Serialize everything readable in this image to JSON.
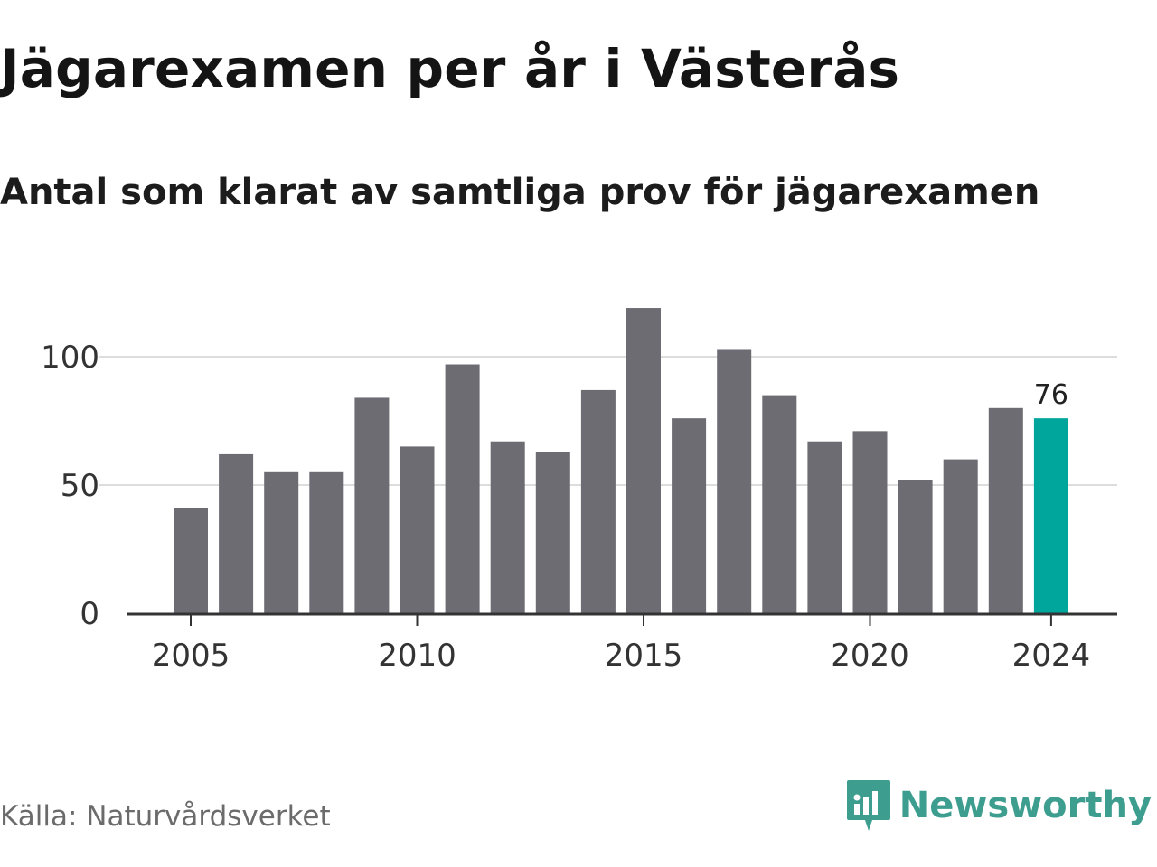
{
  "header": {
    "title": "Jägarexamen per år i Västerås",
    "subtitle": "Antal som klarat av samtliga prov för jägarexamen"
  },
  "footer": {
    "source": "Källa: Naturvårdsverket",
    "brand": "Newsworthy",
    "brand_icon": "newsworthy-logo-icon"
  },
  "colors": {
    "bar": "#6d6c72",
    "highlight": "#00a69c",
    "grid": "#dddddd",
    "axis": "#333333",
    "brand": "#3d9e8f"
  },
  "chart_data": {
    "type": "bar",
    "title": "Jägarexamen per år i Västerås",
    "subtitle": "Antal som klarat av samtliga prov för jägarexamen",
    "xlabel": "",
    "ylabel": "",
    "categories": [
      2005,
      2006,
      2007,
      2008,
      2009,
      2010,
      2011,
      2012,
      2013,
      2014,
      2015,
      2016,
      2017,
      2018,
      2019,
      2020,
      2021,
      2022,
      2023,
      2024
    ],
    "values": [
      41,
      62,
      55,
      55,
      84,
      65,
      97,
      67,
      63,
      87,
      119,
      76,
      103,
      85,
      67,
      71,
      52,
      60,
      80,
      76
    ],
    "highlight_index": 19,
    "highlight_label": "76",
    "ylim": [
      0,
      130
    ],
    "yticks": [
      0,
      50,
      100
    ],
    "xticks": [
      2005,
      2010,
      2015,
      2020,
      2024
    ],
    "grid": true,
    "legend": "none"
  }
}
